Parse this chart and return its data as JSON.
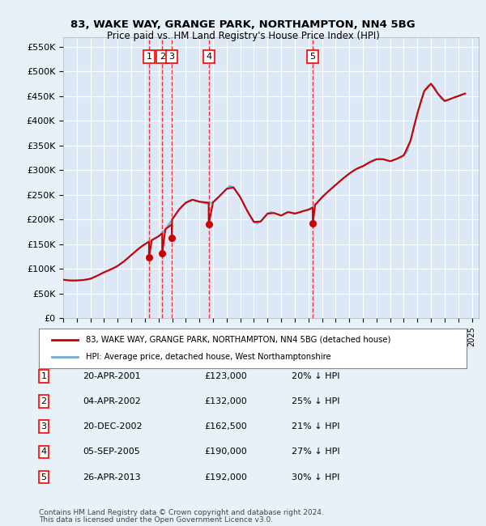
{
  "title1": "83, WAKE WAY, GRANGE PARK, NORTHAMPTON, NN4 5BG",
  "title2": "Price paid vs. HM Land Registry's House Price Index (HPI)",
  "ylabel_ticks": [
    "£0",
    "£50K",
    "£100K",
    "£150K",
    "£200K",
    "£250K",
    "£300K",
    "£350K",
    "£400K",
    "£450K",
    "£500K",
    "£550K"
  ],
  "ytick_values": [
    0,
    50000,
    100000,
    150000,
    200000,
    250000,
    300000,
    350000,
    400000,
    450000,
    500000,
    550000
  ],
  "xmin": 1995.0,
  "xmax": 2025.5,
  "ymin": 0,
  "ymax": 570000,
  "background_color": "#e8f0f8",
  "plot_bg_color": "#dce8f5",
  "grid_color": "#ffffff",
  "legend_label_red": "83, WAKE WAY, GRANGE PARK, NORTHAMPTON, NN4 5BG (detached house)",
  "legend_label_blue": "HPI: Average price, detached house, West Northamptonshire",
  "footer1": "Contains HM Land Registry data © Crown copyright and database right 2024.",
  "footer2": "This data is licensed under the Open Government Licence v3.0.",
  "transactions": [
    {
      "num": 1,
      "date": "20-APR-2001",
      "price": 123000,
      "pct": "20%",
      "x": 2001.3
    },
    {
      "num": 2,
      "date": "04-APR-2002",
      "price": 132000,
      "pct": "25%",
      "x": 2002.27
    },
    {
      "num": 3,
      "date": "20-DEC-2002",
      "price": 162500,
      "pct": "21%",
      "x": 2002.97
    },
    {
      "num": 4,
      "date": "05-SEP-2005",
      "price": 190000,
      "pct": "27%",
      "x": 2005.68
    },
    {
      "num": 5,
      "date": "26-APR-2013",
      "price": 192000,
      "pct": "30%",
      "x": 2013.32
    }
  ],
  "hpi_x": [
    1995.0,
    1995.25,
    1995.5,
    1995.75,
    1996.0,
    1996.25,
    1996.5,
    1996.75,
    1997.0,
    1997.25,
    1997.5,
    1997.75,
    1998.0,
    1998.25,
    1998.5,
    1998.75,
    1999.0,
    1999.25,
    1999.5,
    1999.75,
    2000.0,
    2000.25,
    2000.5,
    2000.75,
    2001.0,
    2001.25,
    2001.5,
    2001.75,
    2002.0,
    2002.25,
    2002.5,
    2002.75,
    2003.0,
    2003.25,
    2003.5,
    2003.75,
    2004.0,
    2004.25,
    2004.5,
    2004.75,
    2005.0,
    2005.25,
    2005.5,
    2005.75,
    2006.0,
    2006.25,
    2006.5,
    2006.75,
    2007.0,
    2007.25,
    2007.5,
    2007.75,
    2008.0,
    2008.25,
    2008.5,
    2008.75,
    2009.0,
    2009.25,
    2009.5,
    2009.75,
    2010.0,
    2010.25,
    2010.5,
    2010.75,
    2011.0,
    2011.25,
    2011.5,
    2011.75,
    2012.0,
    2012.25,
    2012.5,
    2012.75,
    2013.0,
    2013.25,
    2013.5,
    2013.75,
    2014.0,
    2014.25,
    2014.5,
    2014.75,
    2015.0,
    2015.25,
    2015.5,
    2015.75,
    2016.0,
    2016.25,
    2016.5,
    2016.75,
    2017.0,
    2017.25,
    2017.5,
    2017.75,
    2018.0,
    2018.25,
    2018.5,
    2018.75,
    2019.0,
    2019.25,
    2019.5,
    2019.75,
    2020.0,
    2020.25,
    2020.5,
    2020.75,
    2021.0,
    2021.25,
    2021.5,
    2021.75,
    2022.0,
    2022.25,
    2022.5,
    2022.75,
    2023.0,
    2023.25,
    2023.5,
    2023.75,
    2024.0,
    2024.25,
    2024.5
  ],
  "hpi_y": [
    78000,
    77000,
    76500,
    76000,
    76500,
    77000,
    77500,
    78000,
    80000,
    83000,
    86000,
    90000,
    93000,
    96000,
    99000,
    102000,
    106000,
    111000,
    116000,
    122000,
    128000,
    134000,
    140000,
    146000,
    150000,
    155000,
    158000,
    162000,
    166000,
    172000,
    180000,
    190000,
    200000,
    210000,
    220000,
    228000,
    234000,
    238000,
    240000,
    238000,
    236000,
    234000,
    232000,
    233000,
    235000,
    240000,
    248000,
    255000,
    262000,
    268000,
    265000,
    255000,
    245000,
    232000,
    218000,
    205000,
    195000,
    192000,
    196000,
    204000,
    212000,
    215000,
    213000,
    210000,
    208000,
    212000,
    215000,
    214000,
    212000,
    213000,
    216000,
    218000,
    220000,
    224000,
    230000,
    237000,
    245000,
    252000,
    258000,
    264000,
    270000,
    276000,
    282000,
    288000,
    293000,
    298000,
    302000,
    306000,
    308000,
    312000,
    316000,
    320000,
    322000,
    323000,
    322000,
    320000,
    318000,
    320000,
    323000,
    326000,
    330000,
    338000,
    360000,
    390000,
    415000,
    440000,
    460000,
    470000,
    475000,
    468000,
    455000,
    445000,
    440000,
    442000,
    445000,
    448000,
    450000,
    453000,
    455000
  ],
  "sold_x": [
    2001.3,
    2002.27,
    2002.97,
    2005.68,
    2013.32
  ],
  "sold_y": [
    123000,
    132000,
    162500,
    190000,
    192000
  ],
  "red_hpi_x": [
    1995.0,
    1995.5,
    1996.0,
    1996.5,
    1997.0,
    1997.5,
    1998.0,
    1998.5,
    1999.0,
    1999.5,
    2000.0,
    2000.5,
    2001.0,
    2001.3,
    2001.3,
    2001.5,
    2002.0,
    2002.27,
    2002.27,
    2002.5,
    2002.97,
    2002.97,
    2003.0,
    2003.5,
    2004.0,
    2004.5,
    2005.0,
    2005.68,
    2005.68,
    2006.0,
    2006.5,
    2007.0,
    2007.5,
    2008.0,
    2008.5,
    2009.0,
    2009.5,
    2010.0,
    2010.5,
    2011.0,
    2011.5,
    2012.0,
    2012.5,
    2013.0,
    2013.32,
    2013.32,
    2013.5,
    2014.0,
    2014.5,
    2015.0,
    2015.5,
    2016.0,
    2016.5,
    2017.0,
    2017.5,
    2018.0,
    2018.5,
    2019.0,
    2019.5,
    2020.0,
    2020.5,
    2021.0,
    2021.5,
    2022.0,
    2022.5,
    2023.0,
    2023.5,
    2024.0,
    2024.5
  ],
  "red_hpi_y": [
    78000,
    76500,
    76500,
    77500,
    80000,
    86000,
    93000,
    99000,
    106000,
    116000,
    128000,
    140000,
    150000,
    155000,
    123000,
    158000,
    166000,
    172000,
    132000,
    180000,
    190000,
    162500,
    200000,
    220000,
    234000,
    240000,
    236000,
    234000,
    190000,
    235000,
    248000,
    262000,
    265000,
    245000,
    218000,
    195000,
    196000,
    212000,
    213000,
    208000,
    215000,
    212000,
    216000,
    220000,
    224000,
    192000,
    230000,
    245000,
    258000,
    270000,
    282000,
    293000,
    302000,
    308000,
    316000,
    322000,
    322000,
    318000,
    323000,
    330000,
    360000,
    415000,
    460000,
    475000,
    455000,
    440000,
    445000,
    450000,
    455000
  ]
}
